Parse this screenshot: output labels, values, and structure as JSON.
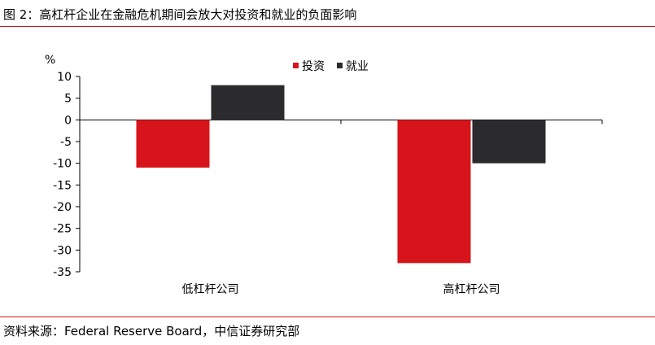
{
  "title": "图 2：高杠杆企业在金融危机期间会放大对投资和就业的负面影响",
  "source": "资料来源：Federal Reserve Board，中信证券研究部",
  "colors": {
    "rule": "#c0151b",
    "investment": "#d7141b",
    "employment": "#2b2b2e"
  },
  "chart_data": {
    "type": "bar",
    "title": "",
    "ylabel": "%",
    "xlabel": "",
    "categories": [
      "低杠杆公司",
      "高杠杆公司"
    ],
    "series": [
      {
        "name": "投资",
        "values": [
          -11,
          -33
        ]
      },
      {
        "name": "就业",
        "values": [
          8,
          -10
        ]
      }
    ],
    "ylim": [
      -35,
      10
    ],
    "yticks": [
      "10",
      "5",
      "0",
      "-5",
      "-10",
      "-15",
      "-20",
      "-25",
      "-30",
      "-35"
    ],
    "grid": false,
    "legend": "top-right"
  }
}
